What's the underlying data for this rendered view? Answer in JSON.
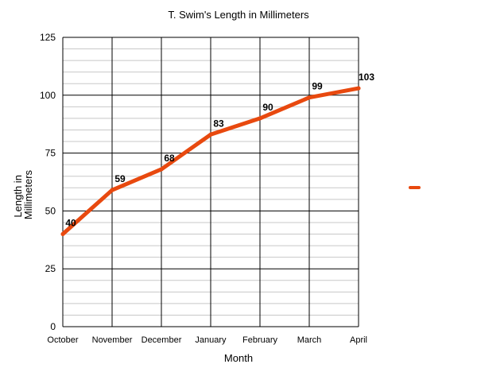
{
  "chart_data": {
    "type": "line",
    "title": "T. Swim's Length in Millimeters",
    "xlabel": "Month",
    "ylabel": [
      "Length in",
      "Millimeters"
    ],
    "categories": [
      "October",
      "November",
      "December",
      "January",
      "February",
      "March",
      "April"
    ],
    "series": [
      {
        "values": [
          40,
          59,
          68,
          83,
          90,
          99,
          103
        ]
      }
    ],
    "data_labels": [
      "40",
      "59",
      "68",
      "83",
      "90",
      "99",
      "103"
    ],
    "ylim": [
      0,
      125
    ],
    "yticks": [
      0,
      25,
      50,
      75,
      100,
      125
    ],
    "y_minor_step": 5,
    "grid": true,
    "legend": "right",
    "line_color": "#e8490f"
  }
}
